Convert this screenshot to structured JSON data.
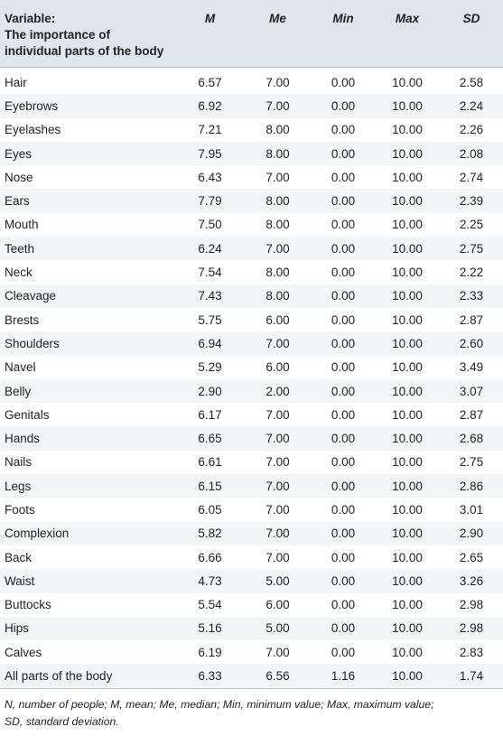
{
  "table": {
    "header": {
      "variable_line1": "Variable:",
      "variable_line2": "The importance of",
      "variable_line3": "individual parts of the body",
      "columns": [
        "M",
        "Me",
        "Min",
        "Max",
        "SD"
      ]
    },
    "rows": [
      {
        "name": "Hair",
        "values": [
          "6.57",
          "7.00",
          "0.00",
          "10.00",
          "2.58"
        ]
      },
      {
        "name": "Eyebrows",
        "values": [
          "6.92",
          "7.00",
          "0.00",
          "10.00",
          "2.24"
        ]
      },
      {
        "name": "Eyelashes",
        "values": [
          "7.21",
          "8.00",
          "0.00",
          "10.00",
          "2.26"
        ]
      },
      {
        "name": "Eyes",
        "values": [
          "7.95",
          "8.00",
          "0.00",
          "10.00",
          "2.08"
        ]
      },
      {
        "name": "Nose",
        "values": [
          "6.43",
          "7.00",
          "0.00",
          "10.00",
          "2.74"
        ]
      },
      {
        "name": "Ears",
        "values": [
          "7.79",
          "8.00",
          "0.00",
          "10.00",
          "2.39"
        ]
      },
      {
        "name": "Mouth",
        "values": [
          "7.50",
          "8.00",
          "0.00",
          "10.00",
          "2.25"
        ]
      },
      {
        "name": "Teeth",
        "values": [
          "6.24",
          "7.00",
          "0.00",
          "10.00",
          "2.75"
        ]
      },
      {
        "name": "Neck",
        "values": [
          "7.54",
          "8.00",
          "0.00",
          "10.00",
          "2.22"
        ]
      },
      {
        "name": "Cleavage",
        "values": [
          "7.43",
          "8.00",
          "0.00",
          "10.00",
          "2.33"
        ]
      },
      {
        "name": "Brests",
        "values": [
          "5.75",
          "6.00",
          "0.00",
          "10.00",
          "2.87"
        ]
      },
      {
        "name": "Shoulders",
        "values": [
          "6.94",
          "7.00",
          "0.00",
          "10.00",
          "2.60"
        ]
      },
      {
        "name": "Navel",
        "values": [
          "5.29",
          "6.00",
          "0.00",
          "10.00",
          "3.49"
        ]
      },
      {
        "name": "Belly",
        "values": [
          "2.90",
          "2.00",
          "0.00",
          "10.00",
          "3.07"
        ]
      },
      {
        "name": "Genitals",
        "values": [
          "6.17",
          "7.00",
          "0.00",
          "10.00",
          "2.87"
        ]
      },
      {
        "name": "Hands",
        "values": [
          "6.65",
          "7.00",
          "0.00",
          "10.00",
          "2.68"
        ]
      },
      {
        "name": "Nails",
        "values": [
          "6.61",
          "7.00",
          "0.00",
          "10.00",
          "2.75"
        ]
      },
      {
        "name": "Legs",
        "values": [
          "6.15",
          "7.00",
          "0.00",
          "10.00",
          "2.86"
        ]
      },
      {
        "name": "Foots",
        "values": [
          "6.05",
          "7.00",
          "0.00",
          "10.00",
          "3.01"
        ]
      },
      {
        "name": "Complexion",
        "values": [
          "5.82",
          "7.00",
          "0.00",
          "10.00",
          "2.90"
        ]
      },
      {
        "name": "Back",
        "values": [
          "6.66",
          "7.00",
          "0.00",
          "10.00",
          "2.65"
        ]
      },
      {
        "name": "Waist",
        "values": [
          "4.73",
          "5.00",
          "0.00",
          "10.00",
          "3.26"
        ]
      },
      {
        "name": "Buttocks",
        "values": [
          "5.54",
          "6.00",
          "0.00",
          "10.00",
          "2.98"
        ]
      },
      {
        "name": "Hips",
        "values": [
          "5.16",
          "5.00",
          "0.00",
          "10.00",
          "2.98"
        ]
      },
      {
        "name": "Calves",
        "values": [
          "6.19",
          "7.00",
          "0.00",
          "10.00",
          "2.83"
        ]
      },
      {
        "name": "All parts of the body",
        "values": [
          "6.33",
          "6.56",
          "1.16",
          "10.00",
          "1.74"
        ]
      }
    ]
  },
  "footnote": {
    "line1": "N, number of people; M, mean; Me, median; Min, minimum value; Max, maximum value;",
    "line2": "SD, standard deviation."
  }
}
